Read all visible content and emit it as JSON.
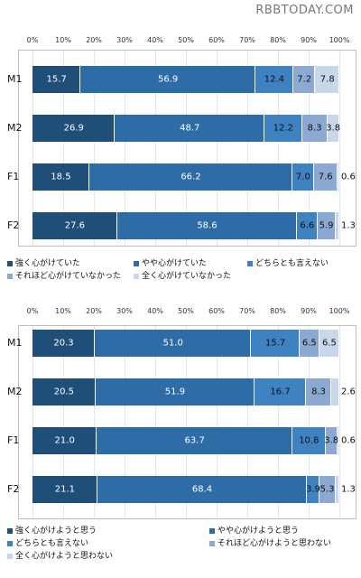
{
  "watermark": "RBBTODAY.COM",
  "colors": [
    "#1f4e79",
    "#2e6ca8",
    "#3f82c2",
    "#8ba9d2",
    "#c9d7ea"
  ],
  "chart_data": [
    {
      "type": "bar",
      "orientation": "horizontal",
      "stacked": true,
      "title": "",
      "xlabel": "",
      "ylabel": "",
      "xlim": [
        0,
        100
      ],
      "x_ticks": [
        "0%",
        "10%",
        "20%",
        "30%",
        "40%",
        "50%",
        "60%",
        "70%",
        "80%",
        "90%",
        "100%"
      ],
      "categories": [
        "M1",
        "M2",
        "F1",
        "F2"
      ],
      "series": [
        {
          "name": "強く心がけていた",
          "values": [
            15.7,
            26.9,
            18.5,
            27.6
          ]
        },
        {
          "name": "やや心がけていた",
          "values": [
            56.9,
            48.7,
            66.2,
            58.6
          ]
        },
        {
          "name": "どちらとも言えない",
          "values": [
            12.4,
            12.2,
            7.0,
            6.6
          ]
        },
        {
          "name": "それほど心がけていなかった",
          "values": [
            7.2,
            8.3,
            7.6,
            5.9
          ]
        },
        {
          "name": "全く心がけていなかった",
          "values": [
            7.8,
            3.8,
            0.6,
            1.3
          ]
        }
      ],
      "legend": "bottom"
    },
    {
      "type": "bar",
      "orientation": "horizontal",
      "stacked": true,
      "title": "",
      "xlabel": "",
      "ylabel": "",
      "xlim": [
        0,
        100
      ],
      "x_ticks": [
        "0%",
        "10%",
        "20%",
        "30%",
        "40%",
        "50%",
        "60%",
        "70%",
        "80%",
        "90%",
        "100%"
      ],
      "categories": [
        "M1",
        "M2",
        "F1",
        "F2"
      ],
      "series": [
        {
          "name": "強く心がけようと思う",
          "values": [
            20.3,
            20.5,
            21.0,
            21.1
          ]
        },
        {
          "name": "やや心がけようと思う",
          "values": [
            51.0,
            51.9,
            63.7,
            68.4
          ]
        },
        {
          "name": "どちらとも言えない",
          "values": [
            15.7,
            16.7,
            10.8,
            3.9
          ]
        },
        {
          "name": "それほど心がけようと思わない",
          "values": [
            6.5,
            8.3,
            3.8,
            5.3
          ]
        },
        {
          "name": "全く心がけようと思わない",
          "values": [
            6.5,
            2.6,
            0.6,
            1.3
          ]
        }
      ],
      "legend": "bottom"
    }
  ]
}
